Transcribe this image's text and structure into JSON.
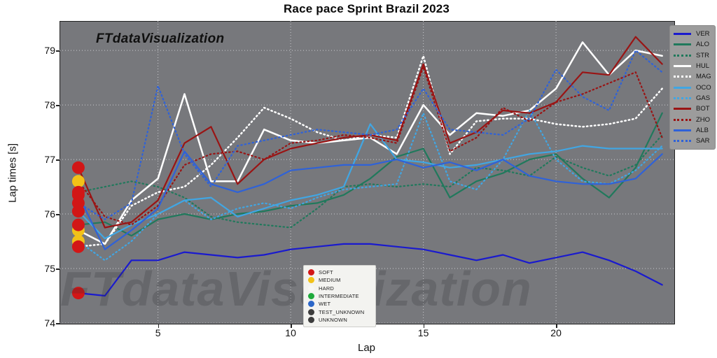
{
  "title": "Race pace Sprint Brazil 2023",
  "watermark_top": "FTdataVisualization",
  "watermark_bottom": "FTdataVisualization",
  "axes": {
    "xlabel": "Lap",
    "ylabel": "Lap times [s]",
    "x_ticks": [
      5,
      10,
      15,
      20
    ],
    "y_ticks": [
      74,
      75,
      76,
      77,
      78,
      79
    ],
    "xlim": [
      1.29,
      24.43
    ],
    "ylim": [
      74,
      79.54
    ],
    "grid": "white-dotted"
  },
  "colors": {
    "figure_bg": "#ffffff",
    "plot_bg": "#77787c",
    "grid": "#cbccd0",
    "driver_legend_bg": "#9c9c9c",
    "tyre_legend_bg": "#f3f3f0",
    "soft": "#d21616",
    "medium": "#f2c218",
    "hard": "#f7f7f4",
    "intermediate": "#1faa3c",
    "wet": "#2b66c8",
    "test_unknown": "#3c3c3c",
    "unknown": "#3c3c3c"
  },
  "tyre_legend": [
    {
      "label": "SOFT",
      "color": "#d21616"
    },
    {
      "label": "MEDIUM",
      "color": "#f2c218"
    },
    {
      "label": "HARD",
      "color": "#f7f7f4"
    },
    {
      "label": "INTERMEDIATE",
      "color": "#1faa3c"
    },
    {
      "label": "WET",
      "color": "#2b66c8"
    },
    {
      "label": "TEST_UNKNOWN",
      "color": "#3c3c3c"
    },
    {
      "label": "UNKNOWN",
      "color": "#3c3c3c"
    }
  ],
  "chart_data": {
    "type": "line",
    "title": "Race pace Sprint Brazil 2023",
    "xlabel": "Lap",
    "ylabel": "Lap times [s]",
    "legend_position": "right",
    "x": [
      2,
      3,
      4,
      5,
      6,
      7,
      8,
      9,
      10,
      11,
      12,
      13,
      14,
      15,
      16,
      17,
      18,
      19,
      20,
      21,
      22,
      23,
      24
    ],
    "series": [
      {
        "name": "VER",
        "color": "#1a1ace",
        "dashed": false,
        "start_tyre": "soft",
        "values": [
          74.55,
          74.5,
          75.15,
          75.15,
          75.3,
          75.25,
          75.2,
          75.25,
          75.35,
          75.4,
          75.45,
          75.45,
          75.4,
          75.35,
          75.25,
          75.15,
          75.25,
          75.1,
          75.2,
          75.3,
          75.15,
          74.95,
          74.7
        ]
      },
      {
        "name": "ALO",
        "color": "#20795c",
        "dashed": false,
        "start_tyre": "soft",
        "values": [
          75.8,
          75.85,
          75.6,
          75.9,
          76.0,
          75.9,
          76.0,
          76.05,
          76.15,
          76.2,
          76.35,
          76.65,
          77.05,
          77.2,
          76.3,
          76.6,
          76.75,
          77.0,
          77.1,
          76.65,
          76.3,
          76.85,
          77.85
        ]
      },
      {
        "name": "STR",
        "color": "#20795c",
        "dashed": true,
        "start_tyre": "soft",
        "values": [
          76.4,
          76.5,
          76.6,
          76.5,
          76.3,
          75.95,
          75.85,
          75.8,
          75.75,
          76.1,
          76.5,
          76.55,
          76.5,
          76.55,
          76.5,
          76.85,
          76.8,
          76.7,
          77.05,
          76.85,
          76.7,
          76.9,
          77.45
        ]
      },
      {
        "name": "HUL",
        "color": "#ffffff",
        "dashed": false,
        "start_tyre": "medium",
        "values": [
          75.7,
          75.45,
          76.25,
          76.65,
          78.2,
          76.6,
          76.6,
          77.55,
          77.35,
          77.3,
          77.35,
          77.4,
          77.1,
          78.0,
          77.45,
          77.85,
          77.8,
          77.9,
          78.3,
          79.15,
          78.55,
          79.0,
          78.9
        ]
      },
      {
        "name": "MAG",
        "color": "#ffffff",
        "dashed": true,
        "start_tyre": "soft",
        "values": [
          75.4,
          75.45,
          76.15,
          76.4,
          76.5,
          76.9,
          77.4,
          77.95,
          77.75,
          77.5,
          77.35,
          77.45,
          77.4,
          78.9,
          77.1,
          77.7,
          77.75,
          77.75,
          77.65,
          77.6,
          77.65,
          77.75,
          78.3
        ]
      },
      {
        "name": "OCO",
        "color": "#41a6e3",
        "dashed": false,
        "start_tyre": "soft",
        "values": [
          76.05,
          75.55,
          75.8,
          76.0,
          76.25,
          76.3,
          75.95,
          76.1,
          76.25,
          76.35,
          76.5,
          77.65,
          77.0,
          76.95,
          76.85,
          76.9,
          77.0,
          77.1,
          77.15,
          77.25,
          77.2,
          77.2,
          77.2
        ]
      },
      {
        "name": "GAS",
        "color": "#41a6e3",
        "dashed": true,
        "start_tyre": "medium",
        "values": [
          75.5,
          75.15,
          75.5,
          76.0,
          76.25,
          75.9,
          76.1,
          76.2,
          76.1,
          76.3,
          76.45,
          76.5,
          76.55,
          77.85,
          76.6,
          76.45,
          77.0,
          77.9,
          77.0,
          76.6,
          76.55,
          76.8,
          77.25
        ]
      },
      {
        "name": "BOT",
        "color": "#9a1414",
        "dashed": false,
        "start_tyre": "soft",
        "values": [
          76.85,
          75.75,
          75.85,
          76.25,
          77.3,
          77.6,
          76.55,
          77.0,
          77.2,
          77.3,
          77.4,
          77.45,
          77.35,
          78.75,
          77.3,
          77.5,
          77.9,
          77.85,
          78.05,
          78.6,
          78.55,
          79.25,
          78.75
        ]
      },
      {
        "name": "ZHO",
        "color": "#9a1414",
        "dashed": true,
        "start_tyre": "medium",
        "values": [
          76.6,
          75.95,
          75.8,
          76.15,
          76.9,
          77.1,
          77.15,
          77.0,
          77.3,
          77.35,
          77.45,
          77.4,
          77.3,
          78.7,
          77.15,
          77.4,
          77.95,
          77.7,
          78.05,
          78.2,
          78.4,
          78.6,
          77.4
        ]
      },
      {
        "name": "ALB",
        "color": "#2f62d8",
        "dashed": false,
        "start_tyre": "soft",
        "values": [
          76.35,
          75.35,
          75.7,
          76.1,
          77.15,
          76.55,
          76.4,
          76.55,
          76.8,
          76.85,
          76.9,
          76.9,
          77.0,
          76.85,
          76.95,
          76.8,
          77.0,
          76.7,
          76.6,
          76.55,
          76.55,
          76.65,
          77.1
        ]
      },
      {
        "name": "SAR",
        "color": "#2f62d8",
        "dashed": true,
        "start_tyre": "soft",
        "values": [
          76.2,
          75.9,
          76.2,
          78.35,
          77.1,
          76.5,
          77.25,
          77.35,
          77.45,
          77.55,
          77.5,
          77.45,
          77.55,
          78.3,
          77.55,
          77.5,
          77.45,
          77.75,
          78.65,
          78.15,
          77.9,
          79.0,
          78.6
        ]
      }
    ],
    "start_marker_radius": 9
  }
}
